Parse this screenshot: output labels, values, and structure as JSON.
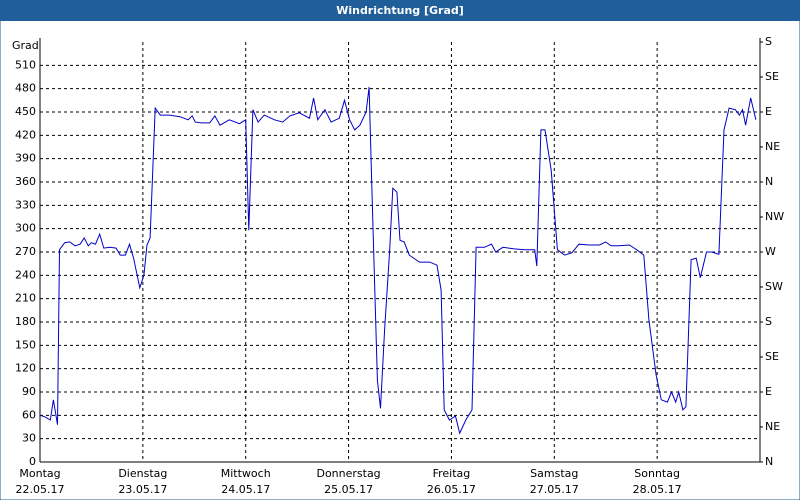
{
  "chart_data": {
    "type": "line",
    "title": "Windrichtung [Grad]",
    "y_label": "Grad",
    "color": "#0000c8",
    "grid": true,
    "xlim": [
      0,
      7
    ],
    "xticks": [
      {
        "value": 0,
        "label": "Montag",
        "date": "22.05.17"
      },
      {
        "value": 1,
        "label": "Dienstag",
        "date": "23.05.17"
      },
      {
        "value": 2,
        "label": "Mittwoch",
        "date": "24.05.17"
      },
      {
        "value": 3,
        "label": "Donnerstag",
        "date": "25.05.17"
      },
      {
        "value": 4,
        "label": "Freitag",
        "date": "26.05.17"
      },
      {
        "value": 5,
        "label": "Samstag",
        "date": "27.05.17"
      },
      {
        "value": 6,
        "label": "Sonntag",
        "date": "28.05.17"
      }
    ],
    "ylim": [
      0,
      540
    ],
    "yticks": [
      0,
      30,
      60,
      90,
      120,
      150,
      180,
      210,
      240,
      270,
      300,
      330,
      360,
      390,
      420,
      450,
      480,
      510
    ],
    "y2lim": [
      0,
      540
    ],
    "y2ticks": [
      {
        "value": 0,
        "label": "N"
      },
      {
        "value": 45,
        "label": "NE"
      },
      {
        "value": 90,
        "label": "E"
      },
      {
        "value": 135,
        "label": "SE"
      },
      {
        "value": 180,
        "label": "S"
      },
      {
        "value": 225,
        "label": "SW"
      },
      {
        "value": 270,
        "label": "W"
      },
      {
        "value": 315,
        "label": "NW"
      },
      {
        "value": 360,
        "label": "N"
      },
      {
        "value": 405,
        "label": "NE"
      },
      {
        "value": 450,
        "label": "E"
      },
      {
        "value": 495,
        "label": "SE"
      },
      {
        "value": 540,
        "label": "S"
      }
    ],
    "x": [
      0,
      0.05,
      0.1,
      0.13,
      0.17,
      0.19,
      0.24,
      0.29,
      0.34,
      0.39,
      0.43,
      0.47,
      0.5,
      0.54,
      0.58,
      0.62,
      0.68,
      0.74,
      0.78,
      0.83,
      0.87,
      0.91,
      0.97,
      1.01,
      1.04,
      1.07,
      1.12,
      1.17,
      1.26,
      1.36,
      1.44,
      1.48,
      1.51,
      1.57,
      1.65,
      1.7,
      1.75,
      1.84,
      1.94,
      2.0,
      2.03,
      2.07,
      2.12,
      2.18,
      2.28,
      2.36,
      2.43,
      2.52,
      2.62,
      2.66,
      2.7,
      2.77,
      2.83,
      2.91,
      2.96,
      3.01,
      3.06,
      3.11,
      3.17,
      3.2,
      3.23,
      3.28,
      3.31,
      3.35,
      3.4,
      3.43,
      3.47,
      3.5,
      3.54,
      3.59,
      3.69,
      3.79,
      3.86,
      3.9,
      3.93,
      3.98,
      4.04,
      4.08,
      4.14,
      4.2,
      4.24,
      4.32,
      4.39,
      4.43,
      4.5,
      4.61,
      4.71,
      4.81,
      4.83,
      4.87,
      4.91,
      4.97,
      5.03,
      5.1,
      5.17,
      5.24,
      5.34,
      5.44,
      5.5,
      5.55,
      5.63,
      5.73,
      5.8,
      5.87,
      5.92,
      5.99,
      6.04,
      6.1,
      6.14,
      6.18,
      6.21,
      6.25,
      6.28,
      6.33,
      6.38,
      6.42,
      6.48,
      6.53,
      6.6,
      6.65,
      6.7,
      6.76,
      6.8,
      6.83,
      6.86,
      6.91,
      6.96
    ],
    "values": [
      60,
      58,
      54,
      80,
      48,
      273,
      282,
      283,
      278,
      280,
      288,
      278,
      282,
      280,
      293,
      275,
      276,
      275,
      266,
      266,
      280,
      262,
      224,
      240,
      279,
      288,
      455,
      446,
      446,
      444,
      440,
      445,
      437,
      436,
      436,
      445,
      433,
      440,
      435,
      440,
      298,
      453,
      437,
      446,
      440,
      437,
      445,
      449,
      442,
      468,
      440,
      453,
      437,
      442,
      465,
      440,
      427,
      433,
      450,
      482,
      337,
      105,
      69,
      170,
      273,
      352,
      347,
      285,
      283,
      266,
      257,
      257,
      253,
      221,
      67,
      54,
      59,
      37,
      54,
      67,
      276,
      276,
      280,
      270,
      276,
      274,
      273,
      273,
      252,
      427,
      427,
      375,
      273,
      266,
      269,
      280,
      279,
      279,
      283,
      278,
      278,
      279,
      273,
      266,
      183,
      112,
      80,
      77,
      90,
      77,
      90,
      67,
      71,
      260,
      262,
      237,
      270,
      270,
      267,
      427,
      455,
      453,
      446,
      453,
      433,
      468,
      440
    ]
  }
}
